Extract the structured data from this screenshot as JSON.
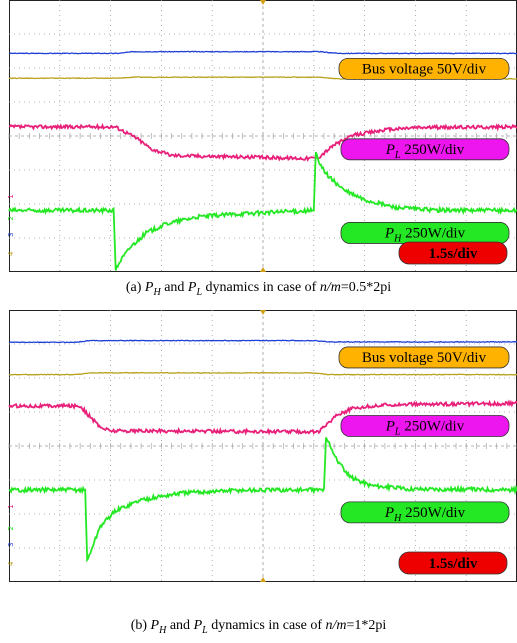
{
  "chart_data": [
    {
      "type": "line",
      "title": "",
      "xlabel": "",
      "ylabel": "",
      "grid": true,
      "time_per_div_label": "1.5s/div",
      "divisions": {
        "x": 10,
        "y": 8
      },
      "channel_markers": [
        "1",
        "2",
        "3",
        "4"
      ],
      "series": [
        {
          "label": "Bus voltage 50V/div",
          "color": "#1f3fd6",
          "label_bg": "#ffb300",
          "x": [
            0,
            2.15,
            2.45,
            6.1,
            6.5,
            10
          ],
          "y": [
            6.43,
            6.43,
            6.48,
            6.48,
            6.43,
            6.43
          ],
          "noise": 0.01
        },
        {
          "label": "Bus voltage 50V/div",
          "color": "#b8a21c",
          "label_bg": "",
          "x": [
            0,
            2.15,
            2.45,
            6.1,
            6.5,
            10
          ],
          "y": [
            5.7,
            5.7,
            5.73,
            5.73,
            5.68,
            5.68
          ],
          "noise": 0.01
        },
        {
          "label_prefix": "P",
          "label_sub": "L",
          "label_rest": " 250W/div",
          "color": "#e8207a",
          "label_bg": "#ee16ee",
          "x": [
            0,
            2.1,
            2.5,
            2.8,
            3.2,
            5.9,
            6.1,
            6.4,
            6.8,
            7.4,
            8.0,
            10
          ],
          "y": [
            4.27,
            4.27,
            3.95,
            3.62,
            3.43,
            3.34,
            3.38,
            3.74,
            4.03,
            4.18,
            4.25,
            4.27
          ],
          "noise": 0.05
        },
        {
          "label_prefix": "P",
          "label_sub": "H",
          "label_rest": " 250W/div",
          "color": "#23e823",
          "label_bg": "#23e823",
          "x": [
            0,
            2.06,
            2.1,
            2.2,
            2.4,
            2.7,
            3.1,
            3.7,
            4.5,
            6.0,
            6.04,
            6.1,
            6.3,
            6.6,
            7.0,
            7.6,
            8.4,
            10
          ],
          "y": [
            1.81,
            1.81,
            0.08,
            0.35,
            0.75,
            1.15,
            1.42,
            1.62,
            1.71,
            1.81,
            3.52,
            3.2,
            2.8,
            2.4,
            2.12,
            1.9,
            1.82,
            1.81
          ],
          "noise": 0.06
        }
      ],
      "caption": {
        "prefix": "(a) ",
        "p1": "P",
        "p1_sub": "H",
        "mid": " and ",
        "p2": "P",
        "p2_sub": "L",
        "rest": " dynamics in case of ",
        "var": "n/m",
        "value": "=0.5*2pi"
      }
    },
    {
      "type": "line",
      "title": "",
      "xlabel": "",
      "ylabel": "",
      "grid": true,
      "time_per_div_label": "1.5s/div",
      "divisions": {
        "x": 10,
        "y": 8
      },
      "channel_markers": [
        "1",
        "2",
        "3",
        "4"
      ],
      "series": [
        {
          "label": "Bus voltage 50V/div",
          "color": "#1f3fd6",
          "label_bg": "#ffb300",
          "x": [
            0,
            1.3,
            1.6,
            6.0,
            6.3,
            10
          ],
          "y": [
            7.05,
            7.05,
            7.1,
            7.1,
            7.06,
            7.06
          ],
          "noise": 0.01
        },
        {
          "label": "Bus voltage 50V/div",
          "color": "#b8a21c",
          "label_bg": "",
          "x": [
            0,
            1.3,
            1.6,
            6.0,
            6.3,
            10
          ],
          "y": [
            6.1,
            6.1,
            6.15,
            6.15,
            6.1,
            6.1
          ],
          "noise": 0.01
        },
        {
          "label_prefix": "P",
          "label_sub": "L",
          "label_rest": " 250W/div",
          "color": "#e8207a",
          "label_bg": "#ee16ee",
          "x": [
            0,
            1.4,
            1.6,
            1.8,
            2.0,
            6.1,
            6.25,
            6.45,
            6.8,
            7.5,
            10
          ],
          "y": [
            5.18,
            5.18,
            4.85,
            4.55,
            4.45,
            4.42,
            4.62,
            4.92,
            5.12,
            5.22,
            5.25
          ],
          "noise": 0.05
        },
        {
          "label_prefix": "P",
          "label_sub": "H",
          "label_rest": " 250W/div",
          "color": "#23e823",
          "label_bg": "#23e823",
          "x": [
            0,
            1.5,
            1.54,
            1.62,
            1.8,
            2.1,
            2.6,
            3.4,
            4.5,
            6.2,
            6.24,
            6.3,
            6.45,
            6.7,
            7.1,
            7.8,
            10
          ],
          "y": [
            2.71,
            2.71,
            0.62,
            0.95,
            1.65,
            2.1,
            2.42,
            2.62,
            2.7,
            2.71,
            4.22,
            4.1,
            3.6,
            3.1,
            2.85,
            2.74,
            2.71
          ],
          "noise": 0.06
        }
      ],
      "caption": {
        "prefix": "(b) ",
        "p1": "P",
        "p1_sub": "H",
        "mid": " and ",
        "p2": "P",
        "p2_sub": "L",
        "rest": " dynamics in case of ",
        "var": "n/m",
        "value": "=1*2pi"
      }
    }
  ]
}
